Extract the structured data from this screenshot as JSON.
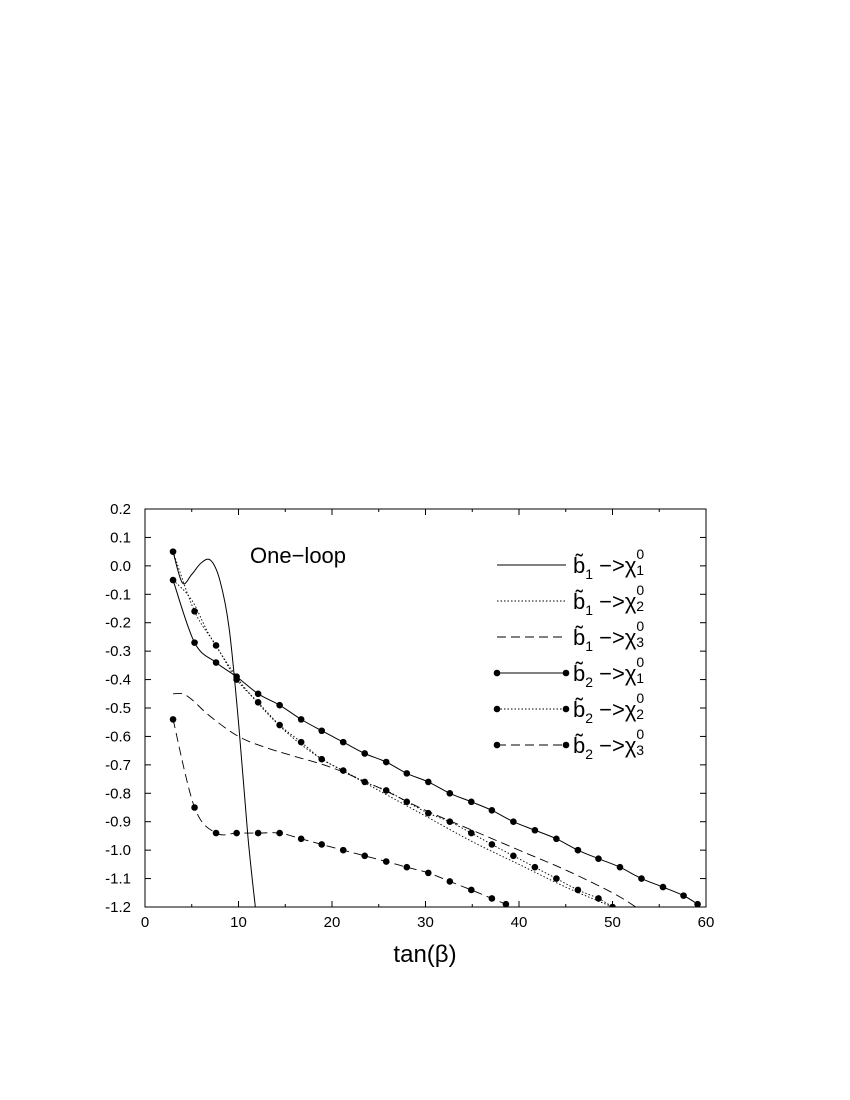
{
  "chart_data": {
    "type": "line",
    "xlabel": "tan(β)",
    "ylabel": "",
    "xlim": [
      0,
      60
    ],
    "ylim": [
      -1.2,
      0.2
    ],
    "xticks": [
      "0",
      "10",
      "20",
      "30",
      "40",
      "50",
      "60"
    ],
    "yticks": [
      "0.2",
      "0.1",
      "0.0",
      "-0.1",
      "-0.2",
      "-0.3",
      "-0.4",
      "-0.5",
      "-0.6",
      "-0.7",
      "-0.8",
      "-0.9",
      "-1.0",
      "-1.1",
      "-1.2"
    ],
    "annotation": "One−loop",
    "legend_position": "top-right",
    "grid": false,
    "series": [
      {
        "name": "b̃1 −>χ01",
        "legend": {
          "base": "b̃",
          "sub1": "1",
          "arrow": " −>",
          "chi": "χ",
          "sup": "0",
          "sub2": "1"
        },
        "line": "solid",
        "markers": false,
        "x": [
          3,
          4,
          5,
          6,
          7,
          8,
          9,
          10,
          11,
          11.8
        ],
        "y": [
          0.05,
          -0.06,
          -0.03,
          0.01,
          0.02,
          -0.05,
          -0.22,
          -0.55,
          -0.95,
          -1.2
        ]
      },
      {
        "name": "b̃1 −>χ02",
        "legend": {
          "base": "b̃",
          "sub1": "1",
          "arrow": " −>",
          "chi": "χ",
          "sup": "0",
          "sub2": "2"
        },
        "line": "dotted",
        "markers": false,
        "x": [
          3,
          5,
          7,
          10,
          12,
          14,
          16,
          18,
          20,
          25,
          30,
          35,
          40,
          45,
          50
        ],
        "y": [
          -0.05,
          -0.12,
          -0.25,
          -0.4,
          -0.48,
          -0.55,
          -0.61,
          -0.66,
          -0.7,
          -0.79,
          -0.88,
          -0.97,
          -1.05,
          -1.13,
          -1.2
        ]
      },
      {
        "name": "b̃1 −>χ03",
        "legend": {
          "base": "b̃",
          "sub1": "1",
          "arrow": " −>",
          "chi": "χ",
          "sup": "0",
          "sub2": "3"
        },
        "line": "dashed",
        "markers": false,
        "x": [
          3,
          4,
          5,
          7,
          10,
          13,
          16,
          20,
          25,
          30,
          35,
          40,
          45,
          50,
          52.5
        ],
        "y": [
          -0.45,
          -0.45,
          -0.47,
          -0.53,
          -0.6,
          -0.64,
          -0.67,
          -0.71,
          -0.78,
          -0.86,
          -0.93,
          -1.0,
          -1.07,
          -1.15,
          -1.2
        ]
      },
      {
        "name": "b̃2 −>χ01",
        "legend": {
          "base": "b̃",
          "sub1": "2",
          "arrow": " −>",
          "chi": "χ",
          "sup": "0",
          "sub2": "1"
        },
        "line": "solid",
        "markers": true,
        "x": [
          3.0,
          5.3,
          7.6,
          9.8,
          12.1,
          14.4,
          16.7,
          18.9,
          21.2,
          23.5,
          25.8,
          28.0,
          30.3,
          32.6,
          34.9,
          37.1,
          39.4,
          41.7,
          44.0,
          46.3,
          48.5,
          50.8,
          53.1,
          55.4,
          57.6,
          59.1
        ],
        "y": [
          -0.05,
          -0.27,
          -0.34,
          -0.39,
          -0.45,
          -0.49,
          -0.54,
          -0.58,
          -0.62,
          -0.66,
          -0.69,
          -0.73,
          -0.76,
          -0.8,
          -0.83,
          -0.86,
          -0.9,
          -0.93,
          -0.96,
          -1.0,
          -1.03,
          -1.06,
          -1.1,
          -1.13,
          -1.16,
          -1.19
        ]
      },
      {
        "name": "b̃2 −>χ02",
        "legend": {
          "base": "b̃",
          "sub1": "2",
          "arrow": " −>",
          "chi": "χ",
          "sup": "0",
          "sub2": "2"
        },
        "line": "dotted",
        "markers": true,
        "x": [
          3.0,
          5.3,
          7.6,
          9.8,
          12.1,
          14.4,
          16.7,
          18.9,
          21.2,
          23.5,
          25.8,
          28.0,
          30.3,
          32.6,
          34.9,
          37.1,
          39.4,
          41.7,
          44.0,
          46.3,
          48.5,
          50.0
        ],
        "y": [
          0.05,
          -0.16,
          -0.28,
          -0.4,
          -0.48,
          -0.56,
          -0.62,
          -0.68,
          -0.72,
          -0.76,
          -0.79,
          -0.83,
          -0.87,
          -0.9,
          -0.94,
          -0.98,
          -1.02,
          -1.06,
          -1.1,
          -1.14,
          -1.17,
          -1.2
        ]
      },
      {
        "name": "b̃2 −>χ03",
        "legend": {
          "base": "b̃",
          "sub1": "2",
          "arrow": " −>",
          "chi": "χ",
          "sup": "0",
          "sub2": "3"
        },
        "line": "dashed",
        "markers": true,
        "x": [
          3.0,
          5.3,
          7.6,
          9.8,
          12.1,
          14.4,
          16.7,
          18.9,
          21.2,
          23.5,
          25.8,
          28.0,
          30.3,
          32.6,
          34.9,
          37.1,
          38.6
        ],
        "y": [
          -0.54,
          -0.85,
          -0.94,
          -0.94,
          -0.94,
          -0.94,
          -0.96,
          -0.98,
          -1.0,
          -1.02,
          -1.04,
          -1.06,
          -1.08,
          -1.11,
          -1.14,
          -1.17,
          -1.19
        ]
      }
    ]
  }
}
